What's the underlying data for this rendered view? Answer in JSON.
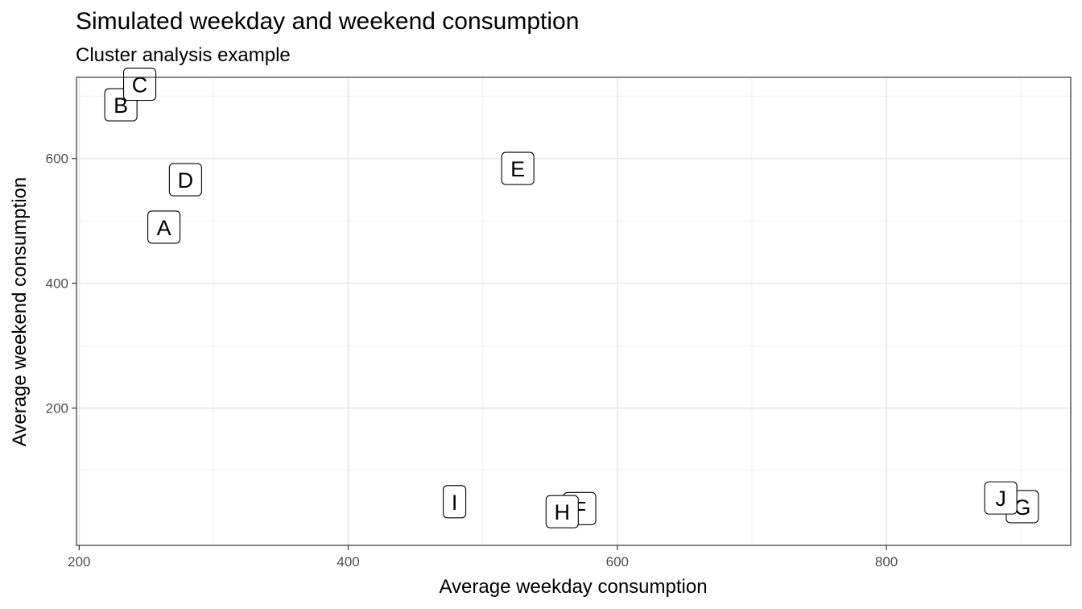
{
  "chart_data": {
    "type": "scatter",
    "title": "Simulated weekday and weekend consumption",
    "subtitle": "Cluster analysis example",
    "xlabel": "Average weekday consumption",
    "ylabel": "Average weekend consumption",
    "xlim": [
      198,
      937
    ],
    "ylim": [
      -20,
      730
    ],
    "x_ticks": [
      200,
      400,
      600,
      800
    ],
    "y_ticks": [
      200,
      400,
      600
    ],
    "x_minor": [
      300,
      500,
      700,
      900
    ],
    "y_minor": [
      100,
      300,
      500,
      700
    ],
    "grid": true,
    "legend": "none",
    "points": [
      {
        "label": "A",
        "x": 263,
        "y": 490
      },
      {
        "label": "B",
        "x": 231,
        "y": 686
      },
      {
        "label": "C",
        "x": 245,
        "y": 719
      },
      {
        "label": "D",
        "x": 279,
        "y": 566
      },
      {
        "label": "E",
        "x": 526,
        "y": 584
      },
      {
        "label": "F",
        "x": 572,
        "y": 39
      },
      {
        "label": "G",
        "x": 901,
        "y": 42
      },
      {
        "label": "H",
        "x": 559,
        "y": 34
      },
      {
        "label": "I",
        "x": 479,
        "y": 50
      },
      {
        "label": "J",
        "x": 885,
        "y": 56
      }
    ]
  }
}
